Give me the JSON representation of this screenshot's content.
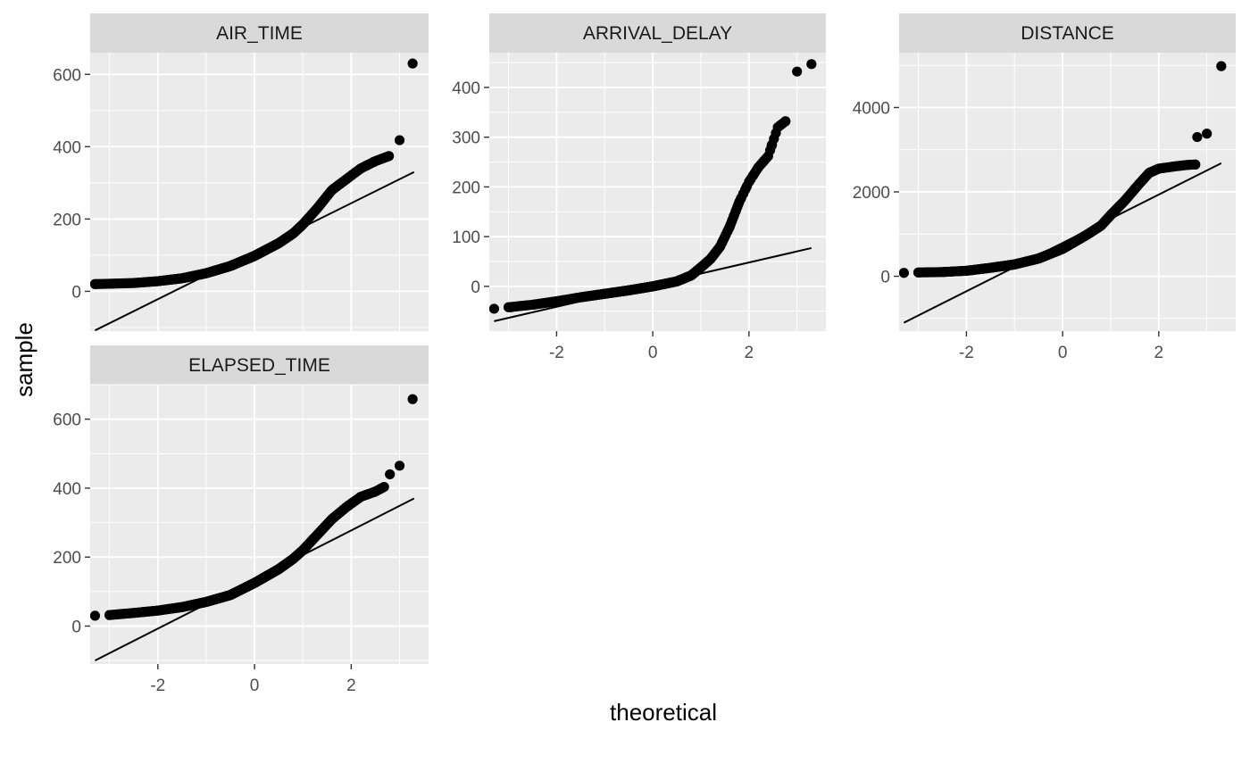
{
  "chart_data": {
    "type": "scatter",
    "subtype": "qq-facet",
    "xlabel": "theoretical",
    "ylabel": "sample",
    "xlim": [
      -3.4,
      3.6
    ],
    "x_ticks": [
      -2,
      0,
      2
    ],
    "grid": true,
    "colors": {
      "panel_bg": "#ebebeb",
      "strip_bg": "#d9d9d9",
      "points": "#000000",
      "line": "#000000"
    },
    "panels": [
      {
        "title": "AIR_TIME",
        "ylim": [
          -110,
          660
        ],
        "y_ticks": [
          0,
          200,
          400,
          600
        ],
        "line": {
          "x": [
            -3.3,
            3.3
          ],
          "y": [
            -108,
            330
          ]
        },
        "quantile_curve": [
          [
            -3.3,
            20
          ],
          [
            -3.0,
            21
          ],
          [
            -2.5,
            23
          ],
          [
            -2.0,
            28
          ],
          [
            -1.5,
            36
          ],
          [
            -1.0,
            50
          ],
          [
            -0.5,
            70
          ],
          [
            0.0,
            98
          ],
          [
            0.5,
            133
          ],
          [
            0.8,
            160
          ],
          [
            1.0,
            185
          ],
          [
            1.3,
            230
          ],
          [
            1.6,
            280
          ],
          [
            1.9,
            310
          ],
          [
            2.2,
            340
          ],
          [
            2.5,
            360
          ],
          [
            2.8,
            375
          ]
        ],
        "outliers": [
          [
            -3.3,
            20
          ],
          [
            -3.0,
            21
          ],
          [
            3.0,
            418
          ],
          [
            3.27,
            630
          ]
        ]
      },
      {
        "title": "ARRIVAL_DELAY",
        "ylim": [
          -90,
          470
        ],
        "y_ticks": [
          0,
          100,
          200,
          300,
          400
        ],
        "line": {
          "x": [
            -3.3,
            3.3
          ],
          "y": [
            -70,
            77
          ]
        },
        "quantile_curve": [
          [
            -3.0,
            -42
          ],
          [
            -2.5,
            -37
          ],
          [
            -2.0,
            -30
          ],
          [
            -1.5,
            -22
          ],
          [
            -1.0,
            -15
          ],
          [
            -0.5,
            -8
          ],
          [
            0.0,
            0
          ],
          [
            0.5,
            10
          ],
          [
            0.8,
            22
          ],
          [
            1.0,
            38
          ],
          [
            1.2,
            55
          ],
          [
            1.4,
            80
          ],
          [
            1.6,
            120
          ],
          [
            1.8,
            170
          ],
          [
            2.0,
            210
          ],
          [
            2.2,
            240
          ],
          [
            2.4,
            262
          ],
          [
            2.6,
            320
          ],
          [
            2.8,
            335
          ]
        ],
        "outliers": [
          [
            -3.3,
            -45
          ],
          [
            -2.95,
            -42
          ],
          [
            3.0,
            432
          ],
          [
            3.3,
            447
          ]
        ]
      },
      {
        "title": "DISTANCE",
        "ylim": [
          -1300,
          5300
        ],
        "y_ticks": [
          0,
          2000,
          4000
        ],
        "line": {
          "x": [
            -3.3,
            3.3
          ],
          "y": [
            -1100,
            2680
          ]
        },
        "quantile_curve": [
          [
            -3.0,
            90
          ],
          [
            -2.5,
            100
          ],
          [
            -2.0,
            130
          ],
          [
            -1.5,
            200
          ],
          [
            -1.0,
            280
          ],
          [
            -0.5,
            420
          ],
          [
            0.0,
            650
          ],
          [
            0.5,
            980
          ],
          [
            0.8,
            1200
          ],
          [
            1.0,
            1450
          ],
          [
            1.3,
            1800
          ],
          [
            1.6,
            2200
          ],
          [
            1.8,
            2450
          ],
          [
            2.0,
            2550
          ],
          [
            2.3,
            2600
          ],
          [
            2.6,
            2640
          ],
          [
            2.8,
            2650
          ]
        ],
        "outliers": [
          [
            -3.3,
            80
          ],
          [
            -3.0,
            90
          ],
          [
            2.8,
            3300
          ],
          [
            3.0,
            3380
          ],
          [
            3.3,
            4980
          ]
        ]
      },
      {
        "title": "ELAPSED_TIME",
        "ylim": [
          -110,
          700
        ],
        "y_ticks": [
          0,
          200,
          400,
          600
        ],
        "line": {
          "x": [
            -3.3,
            3.3
          ],
          "y": [
            -100,
            370
          ]
        },
        "quantile_curve": [
          [
            -3.0,
            32
          ],
          [
            -2.5,
            38
          ],
          [
            -2.0,
            45
          ],
          [
            -1.5,
            55
          ],
          [
            -1.0,
            70
          ],
          [
            -0.5,
            90
          ],
          [
            0.0,
            125
          ],
          [
            0.5,
            165
          ],
          [
            0.8,
            195
          ],
          [
            1.0,
            220
          ],
          [
            1.3,
            265
          ],
          [
            1.6,
            310
          ],
          [
            1.9,
            345
          ],
          [
            2.2,
            375
          ],
          [
            2.5,
            390
          ],
          [
            2.7,
            405
          ]
        ],
        "outliers": [
          [
            -3.3,
            30
          ],
          [
            -3.0,
            32
          ],
          [
            2.8,
            440
          ],
          [
            3.0,
            465
          ],
          [
            3.27,
            658
          ]
        ]
      }
    ]
  }
}
